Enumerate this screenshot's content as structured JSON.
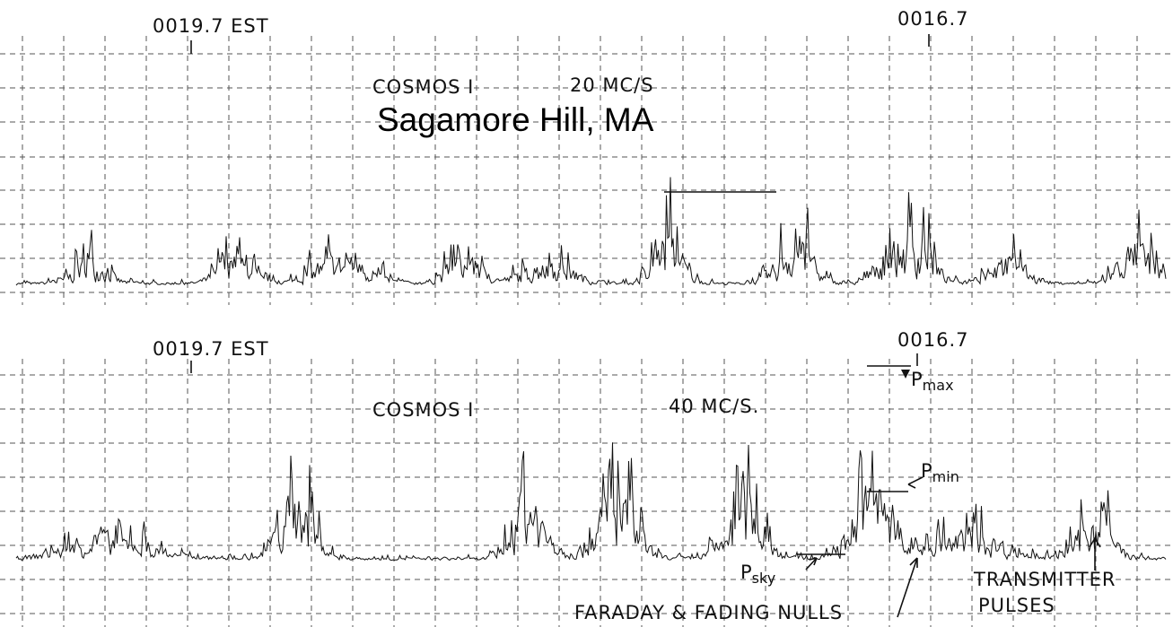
{
  "title": "Sagamore Hill, MA",
  "top_panel": {
    "start_time": "0019.7 EST",
    "end_time": "0016.7",
    "satellite": "COSMOS I",
    "frequency": "20 MC/S"
  },
  "bottom_panel": {
    "start_time": "0019.7 EST",
    "end_time": "0016.7",
    "satellite": "COSMOS I",
    "frequency": "40 MC/S.",
    "annotations": {
      "p_max": {
        "base": "P",
        "sub": "max"
      },
      "p_min": {
        "base": "P",
        "sub": "min"
      },
      "p_sky": {
        "base": "P",
        "sub": "sky"
      },
      "nulls": "FARADAY & FADING NULLS",
      "pulses": [
        "TRANSMITTER",
        "PULSES"
      ]
    }
  }
}
